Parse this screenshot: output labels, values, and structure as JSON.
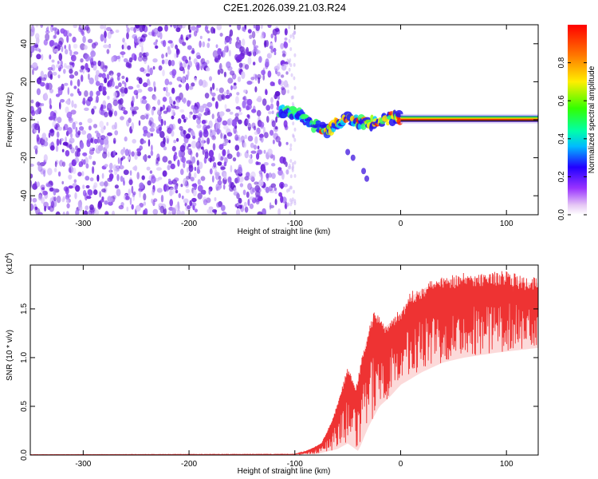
{
  "title": "C2E1.2026.039.21.03.R24",
  "chart_data": [
    {
      "type": "heatmap",
      "xlabel": "Height of straight line (km)",
      "ylabel": "Frequency (Hz)",
      "xlim": [
        -350,
        130
      ],
      "ylim": [
        -50,
        50
      ],
      "xticks": [
        -300,
        -200,
        -100,
        0,
        100
      ],
      "yticks": [
        -40,
        -20,
        0,
        20,
        40
      ],
      "noise_region_x": [
        -350,
        -107
      ],
      "signal_trace": [
        {
          "x": -115,
          "y": 5
        },
        {
          "x": -105,
          "y": 4
        },
        {
          "x": -95,
          "y": 3
        },
        {
          "x": -85,
          "y": -2
        },
        {
          "x": -75,
          "y": -4
        },
        {
          "x": -68,
          "y": -6
        },
        {
          "x": -60,
          "y": -2
        },
        {
          "x": -50,
          "y": 1
        },
        {
          "x": -40,
          "y": -1
        },
        {
          "x": -30,
          "y": -2
        },
        {
          "x": -20,
          "y": -1
        },
        {
          "x": -10,
          "y": 1
        },
        {
          "x": 0,
          "y": 1
        },
        {
          "x": 130,
          "y": 0
        }
      ],
      "secondary_trace": [
        {
          "x": -50,
          "y": -17
        },
        {
          "x": -45,
          "y": -20
        },
        {
          "x": -35,
          "y": -27
        },
        {
          "x": -32,
          "y": -31
        }
      ],
      "colorbar": {
        "label": "Normalized spectral amplitude",
        "range": [
          0.0,
          1.0
        ],
        "ticks": [
          "0.0",
          "0.2",
          "0.4",
          "0.6",
          "0.8"
        ],
        "tick_values": [
          0.0,
          0.2,
          0.4,
          0.6,
          0.8
        ]
      }
    },
    {
      "type": "line",
      "xlabel": "Height of straight line (km)",
      "ylabel": "SNR (10 * v/v)",
      "exponent_label": "(x10",
      "exponent_sup": "4",
      "exponent_close": ")",
      "color": "#ee3333",
      "xlim": [
        -350,
        130
      ],
      "ylim": [
        0,
        1.95
      ],
      "xticks": [
        -300,
        -200,
        -100,
        0,
        100
      ],
      "yticks": [
        "0.0",
        "0.5",
        "1.0",
        "1.5"
      ],
      "ytick_values": [
        0.0,
        0.5,
        1.0,
        1.5
      ],
      "envelope": [
        {
          "x": -350,
          "y": 0.005
        },
        {
          "x": -100,
          "y": 0.01
        },
        {
          "x": -90,
          "y": 0.04
        },
        {
          "x": -75,
          "y": 0.12
        },
        {
          "x": -65,
          "y": 0.35
        },
        {
          "x": -58,
          "y": 0.6
        },
        {
          "x": -50,
          "y": 0.9
        },
        {
          "x": -42,
          "y": 0.7
        },
        {
          "x": -35,
          "y": 1.1
        },
        {
          "x": -25,
          "y": 1.5
        },
        {
          "x": -15,
          "y": 1.35
        },
        {
          "x": -5,
          "y": 1.45
        },
        {
          "x": 0,
          "y": 1.5
        },
        {
          "x": 10,
          "y": 1.68
        },
        {
          "x": 25,
          "y": 1.78
        },
        {
          "x": 40,
          "y": 1.85
        },
        {
          "x": 60,
          "y": 1.87
        },
        {
          "x": 80,
          "y": 1.88
        },
        {
          "x": 100,
          "y": 1.9
        },
        {
          "x": 115,
          "y": 1.83
        },
        {
          "x": 130,
          "y": 1.82
        }
      ],
      "floor": [
        {
          "x": -350,
          "y": 0.0
        },
        {
          "x": -80,
          "y": 0.01
        },
        {
          "x": -60,
          "y": 0.06
        },
        {
          "x": -50,
          "y": 0.12
        },
        {
          "x": -40,
          "y": 0.04
        },
        {
          "x": -30,
          "y": 0.3
        },
        {
          "x": -20,
          "y": 0.5
        },
        {
          "x": -10,
          "y": 0.6
        },
        {
          "x": 0,
          "y": 0.72
        },
        {
          "x": 20,
          "y": 0.85
        },
        {
          "x": 40,
          "y": 0.95
        },
        {
          "x": 60,
          "y": 1.0
        },
        {
          "x": 90,
          "y": 1.05
        },
        {
          "x": 130,
          "y": 1.1
        }
      ]
    }
  ]
}
